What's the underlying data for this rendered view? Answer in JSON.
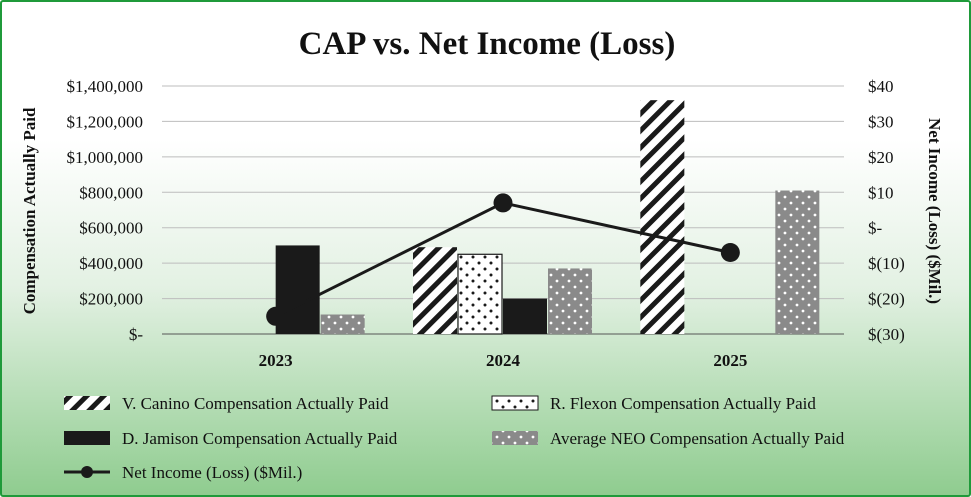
{
  "chart_data": {
    "type": "bar",
    "title": "CAP vs. Net Income (Loss)",
    "categories": [
      "2023",
      "2024",
      "2025"
    ],
    "ylabel": "Compensation Actually Paid",
    "y2label": "Net Income (Loss) ($Mil.)",
    "ylim": [
      0,
      1400000
    ],
    "y2lim": [
      -30,
      40
    ],
    "y_ticks": [
      {
        "value": 0,
        "label": "$-"
      },
      {
        "value": 200000,
        "label": "$200,000"
      },
      {
        "value": 400000,
        "label": "$400,000"
      },
      {
        "value": 600000,
        "label": "$600,000"
      },
      {
        "value": 800000,
        "label": "$800,000"
      },
      {
        "value": 1000000,
        "label": "$1,000,000"
      },
      {
        "value": 1200000,
        "label": "$1,200,000"
      },
      {
        "value": 1400000,
        "label": "$1,400,000"
      }
    ],
    "y2_ticks": [
      {
        "value": -30,
        "label": "$(30)"
      },
      {
        "value": -20,
        "label": "$(20)"
      },
      {
        "value": -10,
        "label": "$(10)"
      },
      {
        "value": 0,
        "label": "$-"
      },
      {
        "value": 10,
        "label": "$10"
      },
      {
        "value": 20,
        "label": "$20"
      },
      {
        "value": 30,
        "label": "$30"
      },
      {
        "value": 40,
        "label": "$40"
      }
    ],
    "grid": true,
    "legend_position": "bottom",
    "series": [
      {
        "name": "V. Canino Compensation Actually Paid",
        "pattern": "hatch",
        "values": [
          0,
          490000,
          1320000
        ]
      },
      {
        "name": "R. Flexon Compensation Actually Paid",
        "pattern": "dots-white",
        "values": [
          0,
          450000,
          0
        ]
      },
      {
        "name": "D. Jamison Compensation Actually Paid",
        "pattern": "solid-black",
        "values": [
          500000,
          200000,
          0
        ]
      },
      {
        "name": "Average NEO Compensation Actually Paid",
        "pattern": "dots-gray",
        "values": [
          110000,
          370000,
          810000
        ]
      }
    ],
    "line_series": {
      "name": "Net Income (Loss) ($Mil.)",
      "axis": "secondary",
      "values": [
        -25,
        7,
        -7
      ]
    },
    "colors": {
      "black": "#1a1a1a",
      "gray": "#8a8a8a",
      "grid": "#bdbdbd",
      "frame": "#1f9a3a"
    }
  }
}
